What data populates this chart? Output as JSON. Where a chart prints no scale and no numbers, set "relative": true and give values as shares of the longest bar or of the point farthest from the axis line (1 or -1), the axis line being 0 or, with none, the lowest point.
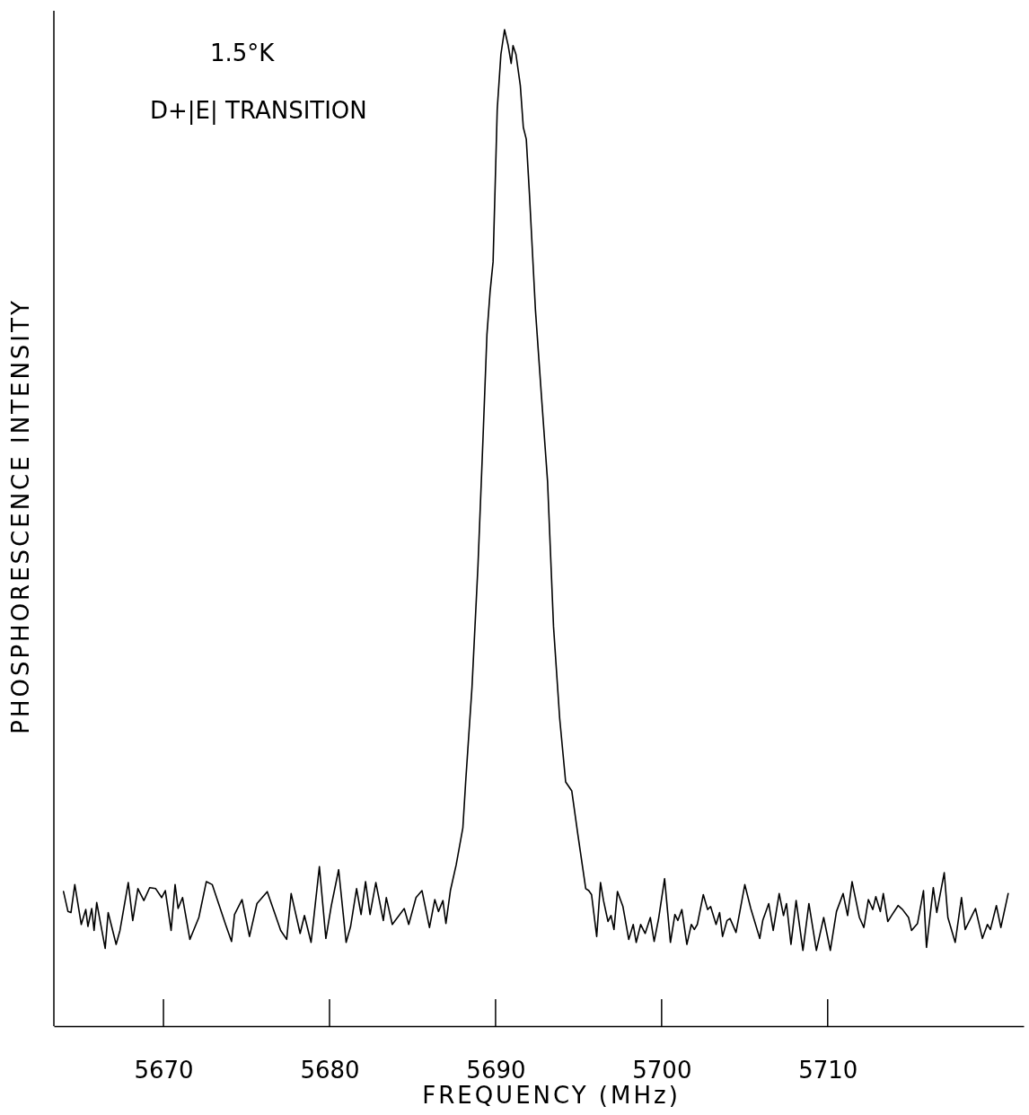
{
  "chart_data": {
    "type": "line",
    "relative": true,
    "xlabel": "FREQUENCY  (MHz)",
    "ylabel": "PHOSPHORESCENCE INTENSITY",
    "annotations": [
      "1.5°K",
      "D+|E| TRANSITION"
    ],
    "xlim": [
      5663.4,
      5721.8
    ],
    "xticks": [
      5670,
      5680,
      5690,
      5700,
      5710
    ],
    "grid": false,
    "marker": "none",
    "line_style": "solid",
    "series": [
      {
        "color": "#000000",
        "x": [
          5663.98,
          5664.25,
          5664.43,
          5664.66,
          5665.05,
          5665.32,
          5665.45,
          5665.68,
          5665.82,
          5665.98,
          5666.49,
          5666.67,
          5666.85,
          5667.15,
          5667.38,
          5667.88,
          5668.15,
          5668.46,
          5668.82,
          5669.17,
          5669.53,
          5669.89,
          5670.11,
          5670.46,
          5670.7,
          5670.88,
          5671.15,
          5671.59,
          5672.13,
          5672.58,
          5672.94,
          5673.74,
          5674.1,
          5674.28,
          5674.73,
          5675.18,
          5675.63,
          5676.25,
          5676.79,
          5677.06,
          5677.42,
          5677.69,
          5678.23,
          5678.49,
          5678.89,
          5679.39,
          5679.78,
          5680.11,
          5680.55,
          5681.0,
          5681.27,
          5681.63,
          5681.9,
          5682.17,
          5682.44,
          5682.79,
          5683.24,
          5683.42,
          5683.78,
          5684.5,
          5684.77,
          5685.21,
          5685.57,
          5686.02,
          5686.34,
          5686.56,
          5686.83,
          5687.01,
          5687.28,
          5687.63,
          5688.03,
          5688.21,
          5688.58,
          5688.94,
          5689.23,
          5689.48,
          5689.67,
          5689.85,
          5690.1,
          5690.32,
          5690.54,
          5690.76,
          5690.94,
          5691.05,
          5691.23,
          5691.49,
          5691.67,
          5691.85,
          5692.04,
          5692.4,
          5692.76,
          5693.13,
          5693.49,
          5693.86,
          5694.22,
          5694.59,
          5694.95,
          5695.43,
          5695.61,
          5695.78,
          5696.09,
          5696.32,
          5696.5,
          5696.77,
          5696.95,
          5697.13,
          5697.34,
          5697.67,
          5698.02,
          5698.29,
          5698.47,
          5698.74,
          5699.01,
          5699.32,
          5699.55,
          5699.82,
          5700.18,
          5700.53,
          5700.8,
          5700.98,
          5701.22,
          5701.52,
          5701.79,
          5701.97,
          5702.15,
          5702.51,
          5702.77,
          5702.95,
          5703.28,
          5703.49,
          5703.67,
          5703.94,
          5704.12,
          5704.48,
          5705.01,
          5705.37,
          5705.91,
          5706.09,
          5706.45,
          5706.72,
          5707.08,
          5707.34,
          5707.52,
          5707.79,
          5708.1,
          5708.51,
          5708.87,
          5709.32,
          5709.76,
          5710.16,
          5710.53,
          5710.93,
          5711.2,
          5711.47,
          5711.91,
          5712.18,
          5712.45,
          5712.72,
          5712.9,
          5713.17,
          5713.35,
          5713.62,
          5713.89,
          5714.24,
          5714.51,
          5714.87,
          5715.05,
          5715.41,
          5715.77,
          5715.95,
          5716.36,
          5716.57,
          5717.02,
          5717.24,
          5717.68,
          5718.06,
          5718.28,
          5718.9,
          5719.32,
          5719.62,
          5719.8,
          5720.16,
          5720.43,
          5720.87
        ],
        "values": [
          0.135,
          0.115,
          0.114,
          0.142,
          0.102,
          0.117,
          0.1,
          0.118,
          0.096,
          0.124,
          0.078,
          0.114,
          0.102,
          0.082,
          0.096,
          0.144,
          0.106,
          0.138,
          0.126,
          0.139,
          0.138,
          0.129,
          0.136,
          0.096,
          0.142,
          0.118,
          0.129,
          0.087,
          0.109,
          0.145,
          0.142,
          0.102,
          0.085,
          0.112,
          0.127,
          0.09,
          0.123,
          0.135,
          0.109,
          0.096,
          0.087,
          0.133,
          0.093,
          0.111,
          0.084,
          0.16,
          0.088,
          0.121,
          0.157,
          0.084,
          0.1,
          0.138,
          0.112,
          0.145,
          0.112,
          0.144,
          0.106,
          0.129,
          0.102,
          0.118,
          0.102,
          0.129,
          0.136,
          0.099,
          0.127,
          0.115,
          0.126,
          0.103,
          0.136,
          0.162,
          0.199,
          0.248,
          0.34,
          0.462,
          0.584,
          0.694,
          0.737,
          0.767,
          0.92,
          0.975,
          1,
          0.984,
          0.966,
          0.984,
          0.975,
          0.944,
          0.902,
          0.89,
          0.835,
          0.719,
          0.633,
          0.547,
          0.401,
          0.309,
          0.245,
          0.236,
          0.193,
          0.138,
          0.136,
          0.132,
          0.09,
          0.144,
          0.126,
          0.105,
          0.111,
          0.097,
          0.135,
          0.12,
          0.087,
          0.102,
          0.084,
          0.102,
          0.093,
          0.109,
          0.085,
          0.108,
          0.148,
          0.084,
          0.112,
          0.106,
          0.117,
          0.082,
          0.102,
          0.097,
          0.102,
          0.132,
          0.117,
          0.12,
          0.102,
          0.114,
          0.09,
          0.106,
          0.108,
          0.094,
          0.142,
          0.118,
          0.088,
          0.106,
          0.123,
          0.096,
          0.133,
          0.111,
          0.123,
          0.082,
          0.126,
          0.076,
          0.123,
          0.076,
          0.109,
          0.076,
          0.115,
          0.133,
          0.111,
          0.145,
          0.109,
          0.099,
          0.127,
          0.117,
          0.13,
          0.115,
          0.133,
          0.105,
          0.112,
          0.121,
          0.117,
          0.109,
          0.096,
          0.103,
          0.136,
          0.079,
          0.139,
          0.114,
          0.154,
          0.109,
          0.084,
          0.129,
          0.097,
          0.118,
          0.088,
          0.102,
          0.097,
          0.121,
          0.099,
          0.133
        ]
      }
    ]
  }
}
